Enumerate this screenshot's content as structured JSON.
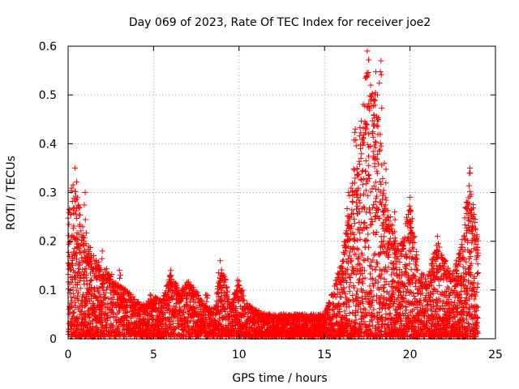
{
  "colors": {
    "series": "#ff0000",
    "grid": "#a0a0a0",
    "frame": "#000000",
    "background": "#ffffff"
  },
  "chart_data": {
    "type": "scatter",
    "title": "Day 069 of 2023, Rate Of TEC Index for receiver joe2",
    "xlabel": "GPS time / hours",
    "ylabel": "ROTI / TECUs",
    "xlim": [
      0,
      25
    ],
    "ylim": [
      0,
      0.6
    ],
    "xticks": [
      0,
      5,
      10,
      15,
      20,
      25
    ],
    "yticks": [
      0,
      0.1,
      0.2,
      0.3,
      0.4,
      0.5,
      0.6
    ],
    "xtick_labels": [
      "0",
      "5",
      "10",
      "15",
      "20",
      "25"
    ],
    "ytick_labels": [
      "0",
      "0.1",
      "0.2",
      "0.3",
      "0.4",
      "0.5",
      "0.6"
    ],
    "grid": true,
    "marker": "+",
    "series": [
      {
        "name": "ROTI",
        "envelope": {
          "description": "approximate upper envelope of the point cloud (hour, ROTI)",
          "x": [
            0.0,
            0.3,
            0.6,
            1.0,
            1.5,
            2.0,
            2.5,
            3.0,
            3.5,
            4.0,
            4.5,
            5.0,
            5.5,
            6.0,
            6.5,
            7.0,
            7.5,
            8.0,
            8.5,
            9.0,
            9.5,
            10.0,
            10.5,
            11.0,
            11.5,
            12.0,
            12.5,
            13.0,
            13.5,
            14.0,
            14.5,
            15.0,
            15.5,
            16.0,
            16.5,
            17.0,
            17.5,
            18.0,
            18.5,
            19.0,
            19.5,
            20.0,
            20.5,
            21.0,
            21.5,
            22.0,
            22.5,
            23.0,
            23.5,
            24.0
          ],
          "y": [
            0.27,
            0.35,
            0.3,
            0.2,
            0.18,
            0.15,
            0.14,
            0.11,
            0.1,
            0.08,
            0.07,
            0.09,
            0.08,
            0.14,
            0.1,
            0.12,
            0.1,
            0.07,
            0.06,
            0.16,
            0.07,
            0.12,
            0.07,
            0.06,
            0.05,
            0.05,
            0.05,
            0.05,
            0.05,
            0.05,
            0.05,
            0.05,
            0.1,
            0.17,
            0.3,
            0.44,
            0.59,
            0.57,
            0.3,
            0.23,
            0.2,
            0.29,
            0.15,
            0.12,
            0.2,
            0.17,
            0.14,
            0.2,
            0.35,
            0.2
          ]
        },
        "peaks": [
          {
            "x": 0.4,
            "y": 0.35
          },
          {
            "x": 1.0,
            "y": 0.3
          },
          {
            "x": 2.0,
            "y": 0.18
          },
          {
            "x": 3.0,
            "y": 0.14
          },
          {
            "x": 4.8,
            "y": 0.09
          },
          {
            "x": 6.0,
            "y": 0.14
          },
          {
            "x": 7.2,
            "y": 0.11
          },
          {
            "x": 8.1,
            "y": 0.09
          },
          {
            "x": 8.9,
            "y": 0.16
          },
          {
            "x": 9.9,
            "y": 0.12
          },
          {
            "x": 16.4,
            "y": 0.3
          },
          {
            "x": 16.8,
            "y": 0.43
          },
          {
            "x": 17.1,
            "y": 0.39
          },
          {
            "x": 17.5,
            "y": 0.59
          },
          {
            "x": 17.7,
            "y": 0.52
          },
          {
            "x": 17.9,
            "y": 0.44
          },
          {
            "x": 18.1,
            "y": 0.5
          },
          {
            "x": 18.3,
            "y": 0.57
          },
          {
            "x": 18.5,
            "y": 0.36
          },
          {
            "x": 19.1,
            "y": 0.26
          },
          {
            "x": 20.0,
            "y": 0.29
          },
          {
            "x": 21.6,
            "y": 0.21
          },
          {
            "x": 23.3,
            "y": 0.28
          },
          {
            "x": 23.5,
            "y": 0.35
          }
        ]
      }
    ]
  }
}
